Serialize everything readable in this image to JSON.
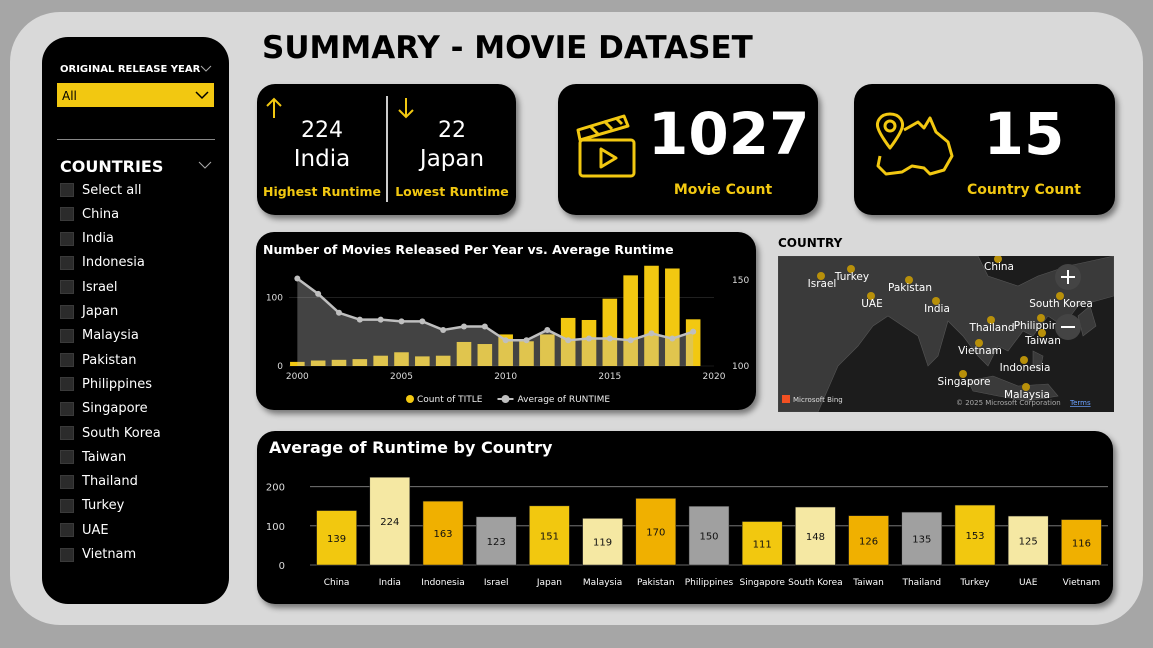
{
  "header": {
    "title": "SUMMARY - MOVIE DATASET"
  },
  "slicers": {
    "year": {
      "title": "ORIGINAL RELEASE YEAR",
      "selected": "All"
    },
    "countries": {
      "title": "COUNTRIES",
      "options": [
        "Select all",
        "China",
        "India",
        "Indonesia",
        "Israel",
        "Japan",
        "Malaysia",
        "Pakistan",
        "Philippines",
        "Singapore",
        "South Korea",
        "Taiwan",
        "Thailand",
        "Turkey",
        "UAE",
        "Vietnam"
      ]
    }
  },
  "kpis": {
    "highest": {
      "value": 224,
      "country": "India",
      "label": "Highest Runtime"
    },
    "lowest": {
      "value": 22,
      "country": "Japan",
      "label": "Lowest Runtime"
    },
    "movie_count": {
      "value": 1027,
      "label": "Movie Count"
    },
    "country_count": {
      "value": 15,
      "label": "Country Count"
    }
  },
  "map": {
    "title": "COUNTRY",
    "labels": [
      "Israel",
      "Turkey",
      "China",
      "Pakistan",
      "UAE",
      "India",
      "South Korea",
      "Thailand",
      "Philippines",
      "Taiwan",
      "Vietnam",
      "Indonesia",
      "Singapore",
      "Malaysia"
    ],
    "attribution": "Microsoft Bing",
    "copyright": "© 2025 Microsoft Corporation",
    "terms": "Terms"
  },
  "chart_data": [
    {
      "type": "combo",
      "title": "Number of Movies Released Per Year vs. Average Runtime",
      "x": [
        2000,
        2001,
        2002,
        2003,
        2004,
        2005,
        2006,
        2007,
        2008,
        2009,
        2010,
        2011,
        2012,
        2013,
        2014,
        2015,
        2016,
        2017,
        2018,
        2019
      ],
      "xlim": [
        1999.6,
        2020
      ],
      "xticks": [
        2000,
        2005,
        2010,
        2015,
        2020
      ],
      "ylim": [
        0,
        150
      ],
      "yticks": [
        0,
        100
      ],
      "y2lim": [
        100,
        160
      ],
      "y2ticks": [
        100,
        150
      ],
      "grid": true,
      "series": [
        {
          "name": "Count of TITLE",
          "type": "bar",
          "color": "#f2c811",
          "values": [
            6,
            8,
            9,
            10,
            15,
            20,
            14,
            15,
            35,
            32,
            46,
            36,
            46,
            70,
            67,
            98,
            132,
            146,
            142,
            68
          ]
        },
        {
          "name": "Average of RUNTIME",
          "type": "line",
          "axis": "y2",
          "color": "#bfbfbf",
          "values": [
            151,
            142,
            131,
            127,
            127,
            126,
            126,
            121,
            123,
            123,
            115,
            115,
            121,
            115,
            116,
            116,
            115,
            119,
            116,
            120
          ]
        }
      ]
    },
    {
      "type": "bar",
      "title": "Average of Runtime by Country",
      "categories": [
        "China",
        "India",
        "Indonesia",
        "Israel",
        "Japan",
        "Malaysia",
        "Pakistan",
        "Philippines",
        "Singapore",
        "South Korea",
        "Taiwan",
        "Thailand",
        "Turkey",
        "UAE",
        "Vietnam"
      ],
      "values": [
        139,
        224,
        163,
        123,
        151,
        119,
        170,
        150,
        111,
        148,
        126,
        135,
        153,
        125,
        116
      ],
      "colors": [
        "#f2c80f",
        "#f5e8a3",
        "#f0b000",
        "#a0a0a0",
        "#f2c80f",
        "#f5e8a3",
        "#f0b000",
        "#a0a0a0",
        "#f2c80f",
        "#f5e8a3",
        "#f0b000",
        "#a0a0a0",
        "#f2c80f",
        "#f5e8a3",
        "#f0b000"
      ],
      "ylim": [
        0,
        240
      ],
      "yticks": [
        0,
        100,
        200
      ],
      "grid": true
    }
  ]
}
